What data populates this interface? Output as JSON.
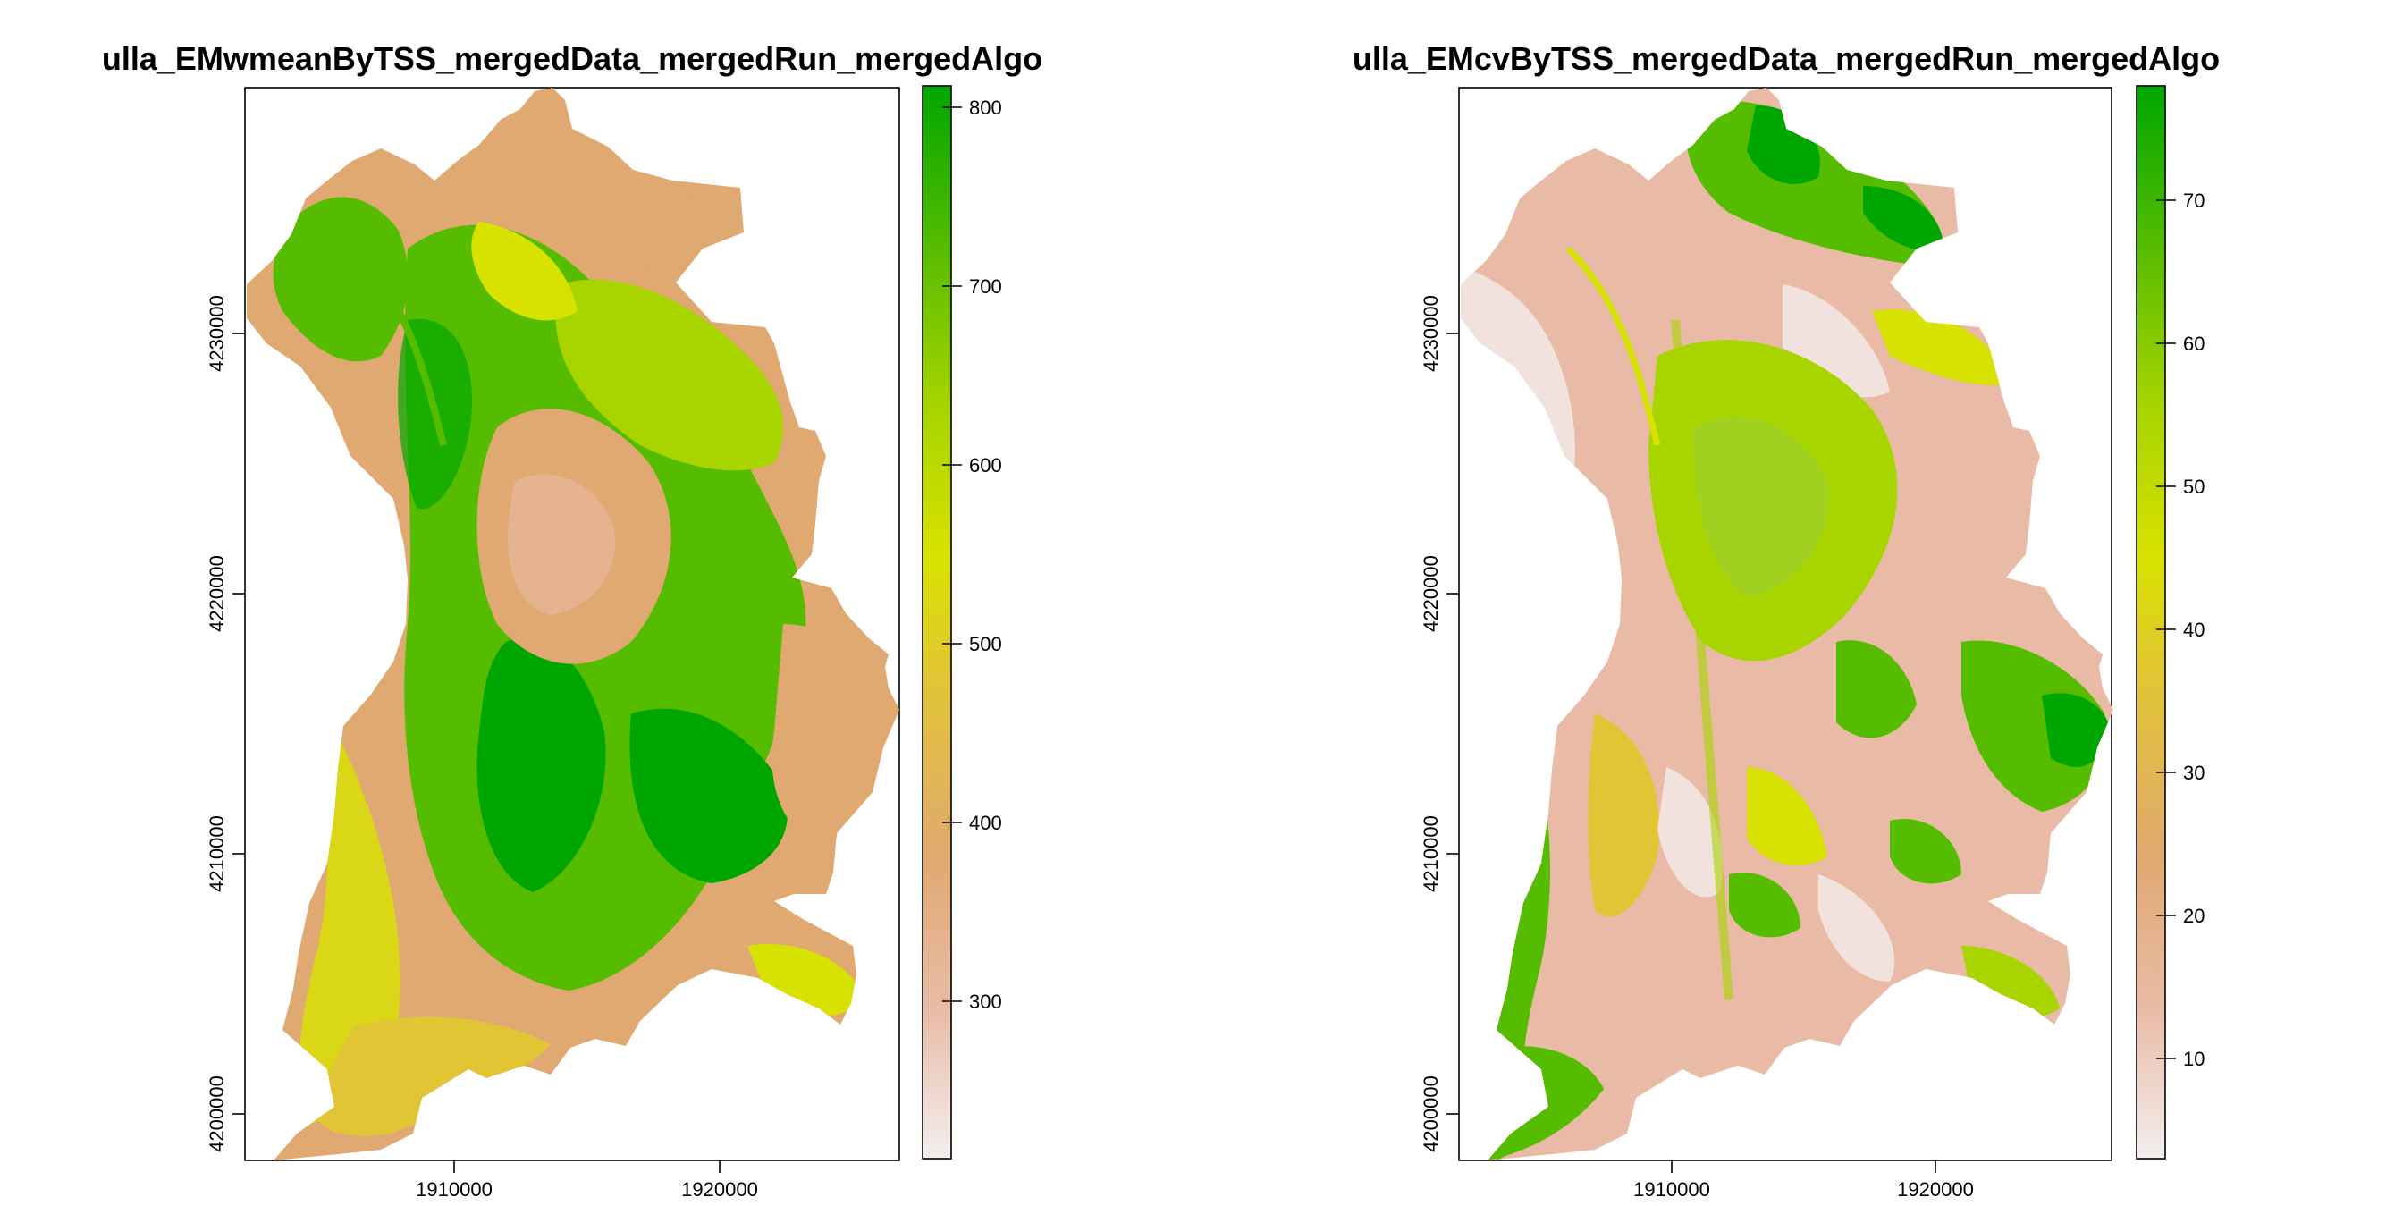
{
  "panels": [
    {
      "title": "ulla_EMwmeanByTSS_mergedData_mergedRun_mergedAlgo",
      "x_ticks": [
        "1910000",
        "1920000"
      ],
      "y_ticks": [
        "4230000",
        "4220000",
        "4210000",
        "4200000"
      ],
      "legend": {
        "labels": [
          "800",
          "700",
          "600",
          "500",
          "400",
          "300"
        ],
        "range": [
          212,
          812
        ],
        "colors": [
          "#f2eeee",
          "#e9bba6",
          "#e0a971",
          "#e2c534",
          "#d8e200",
          "#a8d400",
          "#56bc00",
          "#00a600"
        ]
      }
    },
    {
      "title": "ulla_EMcvByTSS_mergedData_mergedRun_mergedAlgo",
      "x_ticks": [
        "1910000",
        "1920000"
      ],
      "y_ticks": [
        "4230000",
        "4220000",
        "4210000",
        "4200000"
      ],
      "legend": {
        "labels": [
          "70",
          "60",
          "50",
          "40",
          "30",
          "20",
          "10"
        ],
        "range": [
          3,
          78
        ],
        "colors": [
          "#f2eeee",
          "#e9bba6",
          "#e0a971",
          "#e2c534",
          "#d8e200",
          "#a8d400",
          "#56bc00",
          "#00a600"
        ]
      }
    }
  ],
  "map_data": {
    "x_range": [
      1902000,
      1927000
    ],
    "y_range": [
      4199000,
      4240500
    ]
  }
}
